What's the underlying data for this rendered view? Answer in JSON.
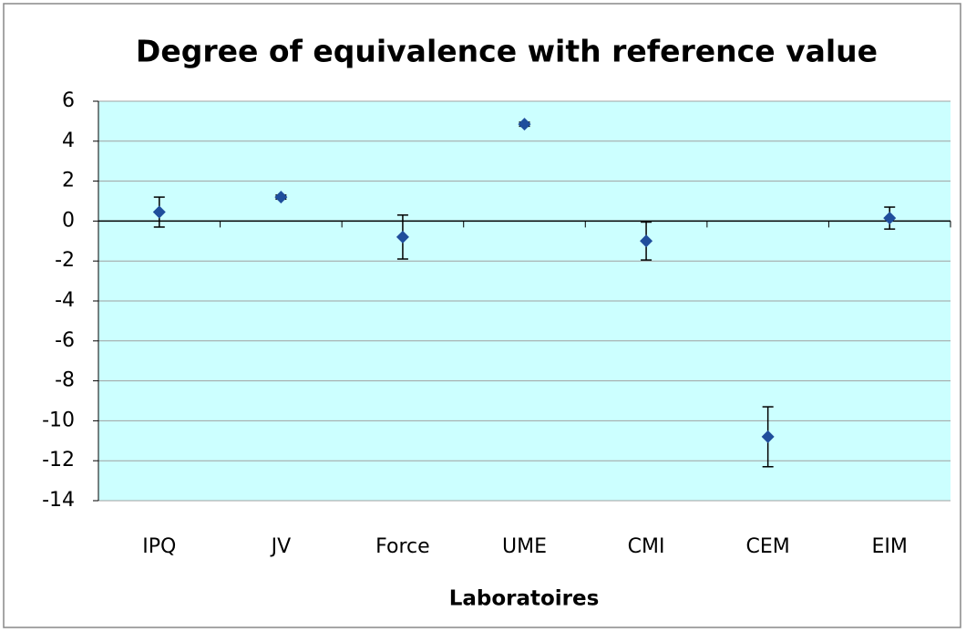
{
  "chart_data": {
    "type": "errorbar",
    "title": "Degree of equivalence with reference value",
    "x_label": "Laboratoires",
    "categories": [
      "IPQ",
      "JV",
      "Force",
      "UME",
      "CMI",
      "CEM",
      "EIM"
    ],
    "values": [
      0.45,
      1.2,
      -0.8,
      4.85,
      -1.0,
      -10.8,
      0.15
    ],
    "errors": [
      0.75,
      0.1,
      1.1,
      0.1,
      0.95,
      1.5,
      0.55
    ],
    "color": "#1f4e9c",
    "ylim": [
      -14,
      6
    ],
    "yticks": [
      -14,
      -12,
      -10,
      -8,
      -6,
      -4,
      -2,
      0,
      2,
      4,
      6
    ],
    "grid": true
  }
}
